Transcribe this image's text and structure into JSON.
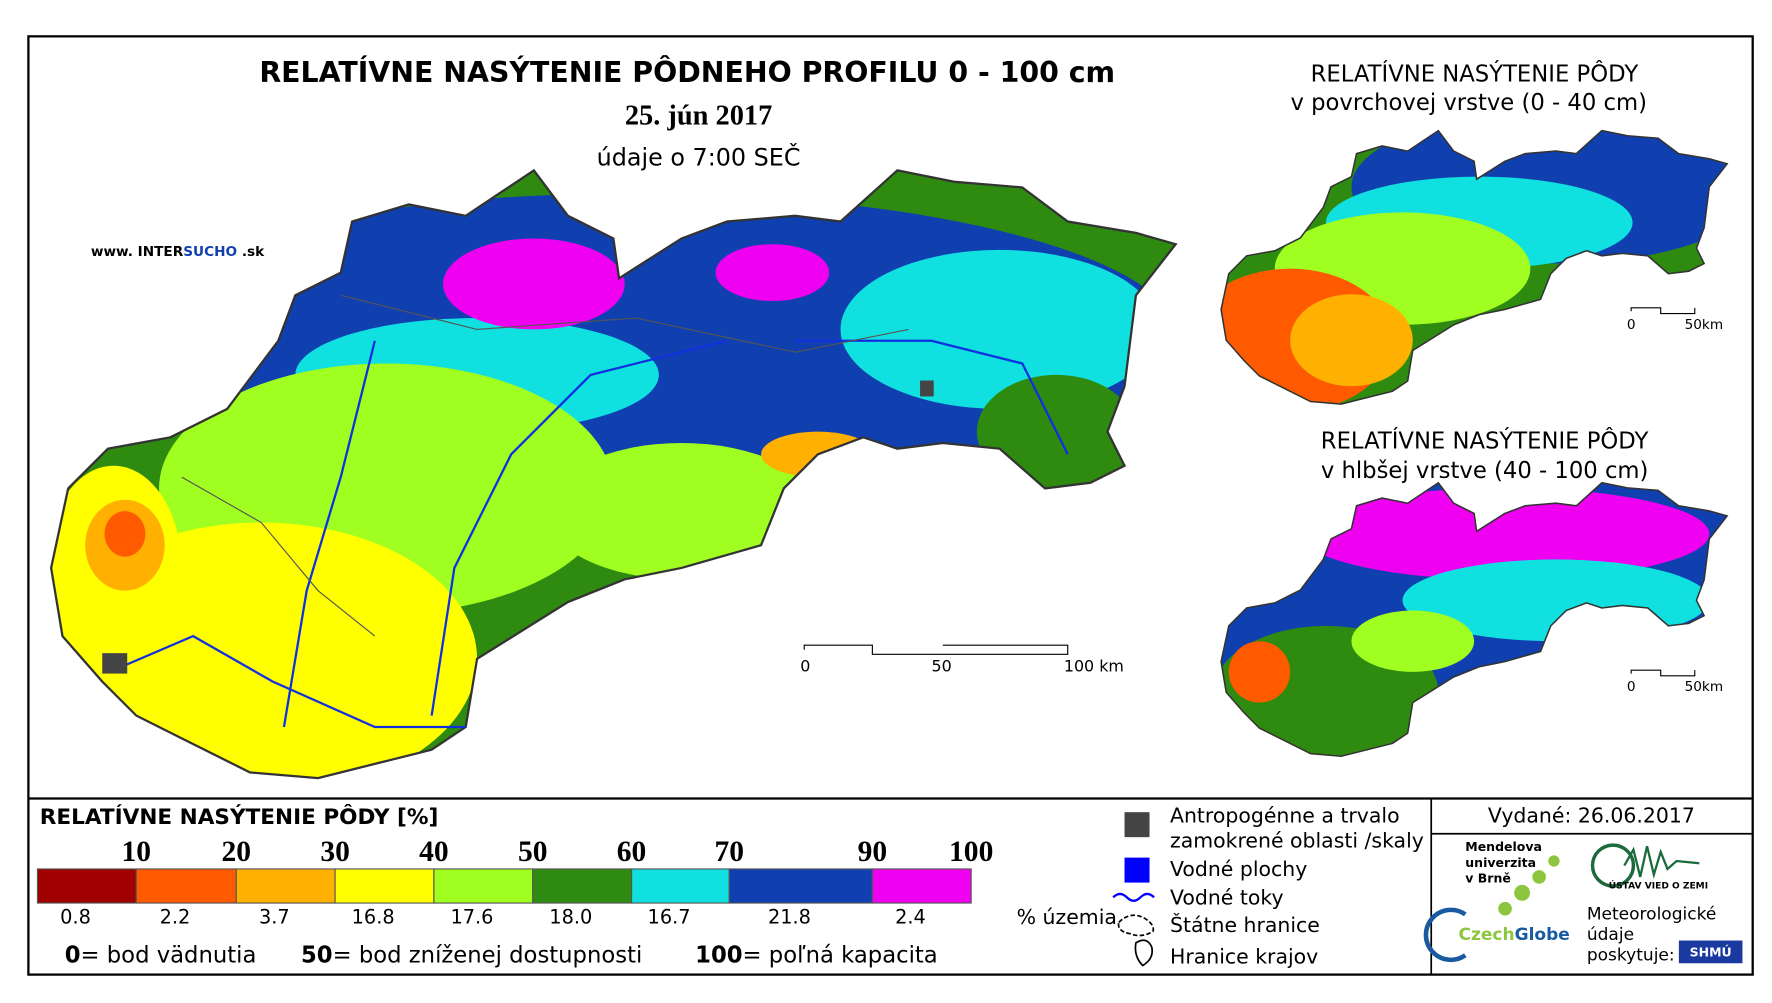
{
  "header": {
    "title": "RELATÍVNE NASÝTENIE PÔDNEHO PROFILU 0 - 100 cm",
    "date": "25. jún 2017",
    "time_note": "údaje o 7:00 SEČ",
    "website": {
      "prefix": "www. INTER",
      "highlight": "SUCHO",
      "suffix": " .sk"
    }
  },
  "main_scale": {
    "labels": [
      "0",
      "50",
      "100 km"
    ]
  },
  "insets": [
    {
      "title_line1": "RELATÍVNE NASÝTENIE PÔDY",
      "title_line2": "v povrchovej vrstve (0 - 40 cm)",
      "scale_labels": [
        "0",
        "50km"
      ]
    },
    {
      "title_line1": "RELATÍVNE NASÝTENIE PÔDY",
      "title_line2": "v hlbšej vrstve (40 - 100 cm)",
      "scale_labels": [
        "0",
        "50km"
      ]
    }
  ],
  "legend": {
    "title": "RELATÍVNE NASÝTENIE PÔDY [%]",
    "thresholds": [
      "10",
      "20",
      "30",
      "40",
      "50",
      "60",
      "70",
      "90",
      "100"
    ],
    "colors": [
      "#a00000",
      "#ff5a00",
      "#ffb000",
      "#ffff00",
      "#a0ff20",
      "#2e8b10",
      "#10e0e0",
      "#1040b0",
      "#f000f0"
    ],
    "shares": [
      "0.8",
      "2.2",
      "3.7",
      "16.8",
      "17.6",
      "18.0",
      "16.7",
      "21.8",
      "2.4"
    ],
    "shares_unit": "% územia",
    "notes": [
      {
        "key": "0",
        "text": "= bod vädnutia"
      },
      {
        "key": "50",
        "text": "= bod zníženej dostupnosti"
      },
      {
        "key": "100",
        "text": "= poľná kapacita"
      }
    ]
  },
  "symbols": [
    {
      "line1": "Antropogénne a trvalo",
      "line2": "zamokrené oblasti /skaly"
    },
    {
      "line1": "Vodné plochy"
    },
    {
      "line1": "Vodné toky"
    },
    {
      "line1": "Štátne hranice"
    },
    {
      "line1": "Hranice krajov"
    }
  ],
  "footer": {
    "issued": "Vydané: 26.06.2017",
    "mendel": [
      "Mendelova",
      "univerzita",
      "v Brně"
    ],
    "czechglobe": {
      "a": "Czech",
      "b": "Globe"
    },
    "ustav": "ÚSTAV VIED O ZEMI",
    "meteo": [
      "Meteorologické",
      "údaje",
      "poskytuje:"
    ],
    "shmu": "SHMÚ"
  }
}
